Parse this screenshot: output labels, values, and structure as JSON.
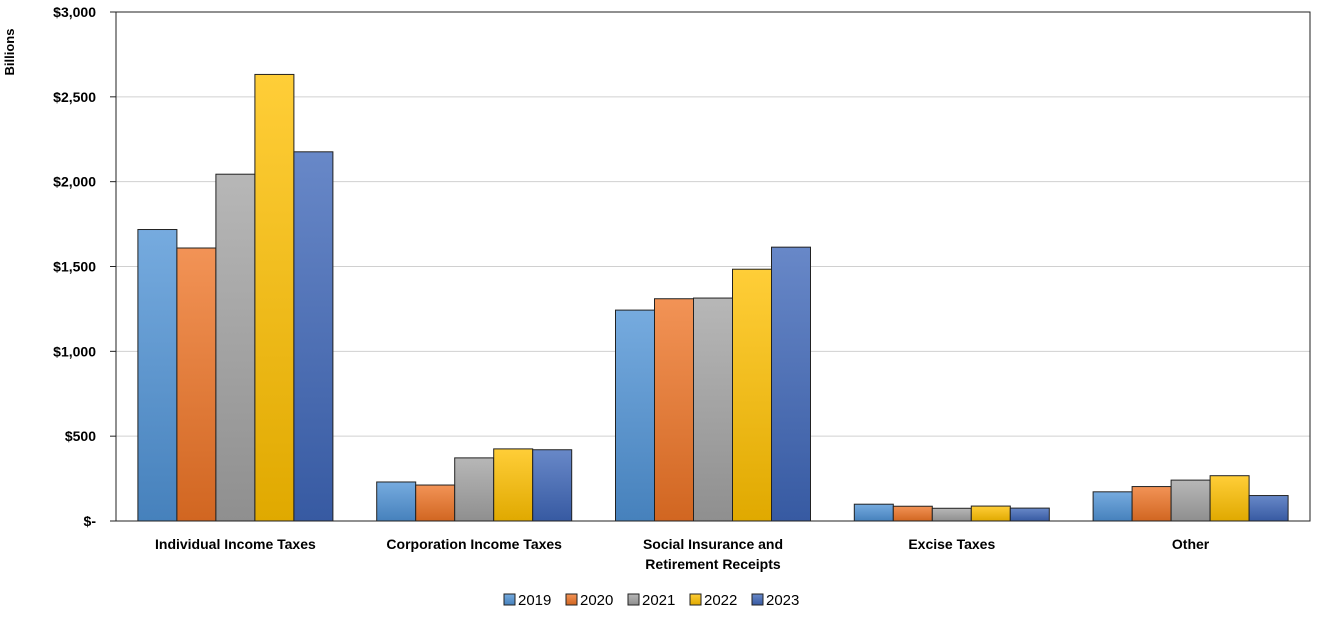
{
  "chart_data": {
    "type": "bar",
    "title": "",
    "xlabel": "",
    "ylabel": "Billions",
    "ylim": [
      0,
      3000
    ],
    "yticks": [
      0,
      500,
      1000,
      1500,
      2000,
      2500,
      3000
    ],
    "ytick_labels": [
      "$-",
      "$500",
      "$1,000",
      "$1,500",
      "$2,000",
      "$2,500",
      "$3,000"
    ],
    "categories": [
      [
        "Individual Income Taxes"
      ],
      [
        "Corporation Income Taxes"
      ],
      [
        "Social Insurance and",
        "Retirement Receipts"
      ],
      [
        "Excise Taxes"
      ],
      [
        "Other"
      ]
    ],
    "series": [
      {
        "name": "2019",
        "color": "#4f93d6",
        "values": [
          1718,
          230,
          1243,
          99,
          172
        ]
      },
      {
        "name": "2020",
        "color": "#ee7426",
        "values": [
          1609,
          212,
          1310,
          87,
          203
        ]
      },
      {
        "name": "2021",
        "color": "#a3a3a3",
        "values": [
          2044,
          372,
          1314,
          75,
          241
        ]
      },
      {
        "name": "2022",
        "color": "#ffc000",
        "values": [
          2632,
          425,
          1484,
          88,
          267
        ]
      },
      {
        "name": "2023",
        "color": "#3e66b8",
        "values": [
          2176,
          420,
          1614,
          76,
          150
        ]
      }
    ],
    "grid": true,
    "legend_position": "bottom"
  }
}
